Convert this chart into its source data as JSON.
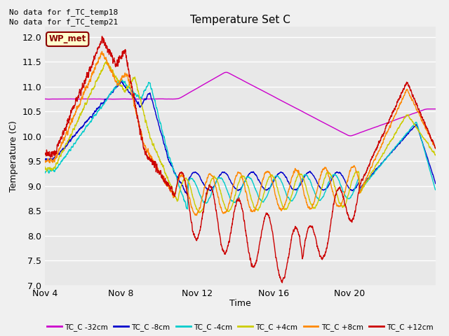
{
  "title": "Temperature Set C",
  "xlabel": "Time",
  "ylabel": "Temperature (C)",
  "ylim": [
    7.0,
    12.2
  ],
  "yticks": [
    7.0,
    7.5,
    8.0,
    8.5,
    9.0,
    9.5,
    10.0,
    10.5,
    11.0,
    11.5,
    12.0
  ],
  "xtick_labels": [
    "Nov 4",
    "Nov 8",
    "Nov 12",
    "Nov 16",
    "Nov 20"
  ],
  "xtick_positions": [
    0,
    4,
    8,
    12,
    16
  ],
  "xmax": 20.5,
  "note_lines": [
    "No data for f_TC_temp18",
    "No data for f_TC_temp21"
  ],
  "wp_met_label": "WP_met",
  "legend_entries": [
    {
      "label": "TC_C -32cm",
      "color": "#cc00cc"
    },
    {
      "label": "TC_C -8cm",
      "color": "#0000cc"
    },
    {
      "label": "TC_C -4cm",
      "color": "#00cccc"
    },
    {
      "label": "TC_C +4cm",
      "color": "#cccc00"
    },
    {
      "label": "TC_C +8cm",
      "color": "#ff8800"
    },
    {
      "label": "TC_C +12cm",
      "color": "#cc0000"
    }
  ],
  "bg_color": "#e8e8e8",
  "grid_color": "#ffffff",
  "linewidth": 1.0,
  "fig_width": 6.4,
  "fig_height": 4.8,
  "dpi": 100
}
